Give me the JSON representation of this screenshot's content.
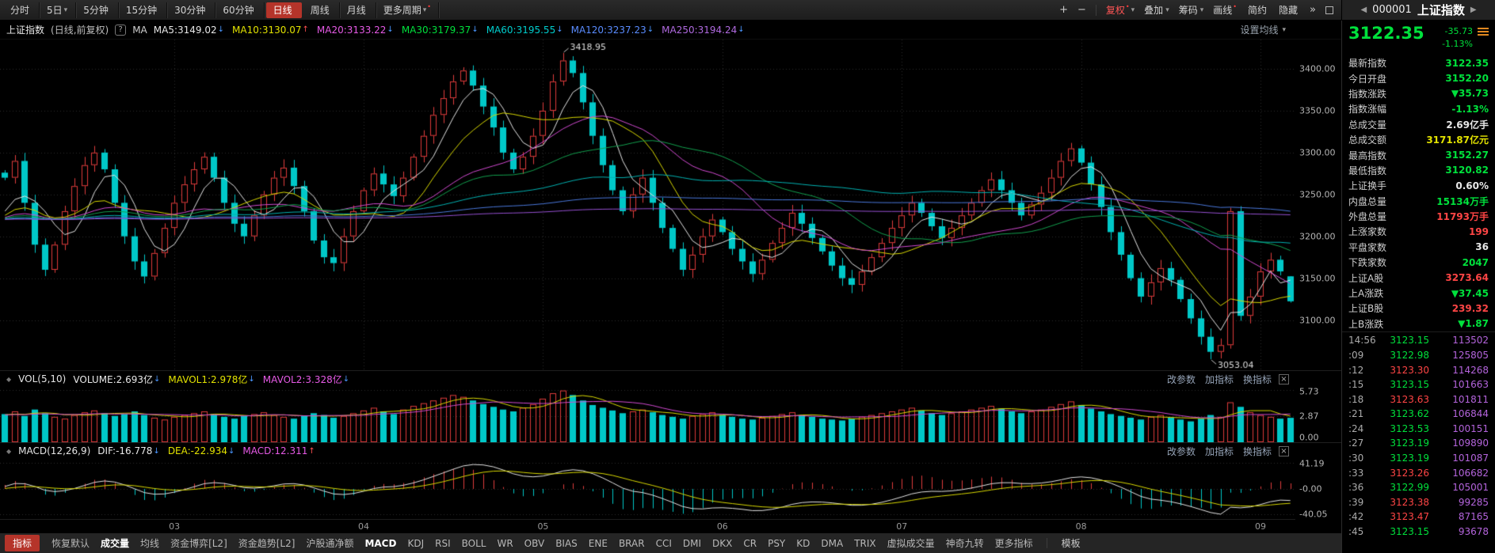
{
  "icons": {
    "plus": "+",
    "minus": "−",
    "chevrons": "»",
    "prev": "◀",
    "next": "▶",
    "caret": "▾",
    "close": "×",
    "handle": "◆",
    "help": "?"
  },
  "topbar": {
    "periods": [
      {
        "label": "分时",
        "caret": "",
        "dot": "",
        "active": false
      },
      {
        "label": "5日",
        "caret": "▾",
        "dot": "",
        "active": false
      },
      {
        "label": "5分钟",
        "caret": "",
        "dot": "",
        "active": false
      },
      {
        "label": "15分钟",
        "caret": "",
        "dot": "",
        "active": false
      },
      {
        "label": "30分钟",
        "caret": "",
        "dot": "",
        "active": false
      },
      {
        "label": "60分钟",
        "caret": "",
        "dot": "",
        "active": false
      },
      {
        "label": "日线",
        "caret": "",
        "dot": "",
        "active": true
      },
      {
        "label": "周线",
        "caret": "",
        "dot": "",
        "active": false
      },
      {
        "label": "月线",
        "caret": "",
        "dot": "",
        "active": false
      },
      {
        "label": "更多周期",
        "caret": "▾",
        "dot": "•",
        "active": false
      }
    ],
    "tools": [
      {
        "label": "复权",
        "caret": "▾",
        "dot": "•",
        "red": true
      },
      {
        "label": "叠加",
        "caret": "▾",
        "dot": "",
        "red": false
      },
      {
        "label": "筹码",
        "caret": "▾",
        "dot": "",
        "red": false
      },
      {
        "label": "画线",
        "caret": "",
        "dot": "•",
        "red": false
      },
      {
        "label": "简约",
        "caret": "",
        "dot": "",
        "red": false
      },
      {
        "label": "隐藏",
        "caret": "",
        "dot": "",
        "red": false
      }
    ]
  },
  "symbol": {
    "code": "000001",
    "name": "上证指数"
  },
  "ma_bar": {
    "title": "上证指数",
    "subtitle": "(日线,前复权)",
    "ma_label": "MA",
    "settings": "设置均线",
    "items": [
      {
        "text": "MA5:3149.02",
        "color": "white",
        "arrow": "↓",
        "dir": "down"
      },
      {
        "text": "MA10:3130.07",
        "color": "yellow",
        "arrow": "↑",
        "dir": "up"
      },
      {
        "text": "MA20:3133.22",
        "color": "magenta",
        "arrow": "↓",
        "dir": "down"
      },
      {
        "text": "MA30:3179.37",
        "color": "green",
        "arrow": "↓",
        "dir": "down"
      },
      {
        "text": "MA60:3195.55",
        "color": "cyan",
        "arrow": "↓",
        "dir": "down"
      },
      {
        "text": "MA120:3237.23",
        "color": "blue",
        "arrow": "↓",
        "dir": "down"
      },
      {
        "text": "MA250:3194.24",
        "color": "purple",
        "arrow": "↓",
        "dir": "down"
      }
    ]
  },
  "vol_panel": {
    "name": "VOL(5,10)",
    "items": [
      {
        "text": "VOLUME:2.693亿",
        "color": "white",
        "arrow": "↓",
        "dir": "down"
      },
      {
        "text": "MAVOL1:2.978亿",
        "color": "yellow",
        "arrow": "↓",
        "dir": "down"
      },
      {
        "text": "MAVOL2:3.328亿",
        "color": "magenta",
        "arrow": "↓",
        "dir": "down"
      }
    ],
    "links": [
      "改参数",
      "加指标",
      "换指标"
    ]
  },
  "macd_panel": {
    "name": "MACD(12,26,9)",
    "items": [
      {
        "text": "DIF:-16.778",
        "color": "white",
        "arrow": "↓",
        "dir": "down"
      },
      {
        "text": "DEA:-22.934",
        "color": "yellow",
        "arrow": "↓",
        "dir": "down"
      },
      {
        "text": "MACD:12.311",
        "color": "magenta",
        "arrow": "↑",
        "dir": "up"
      }
    ],
    "links": [
      "改参数",
      "加指标",
      "换指标"
    ]
  },
  "bottombar": {
    "indicator_btn": "指标",
    "template_btn": "模板",
    "items": [
      {
        "label": "恢复默认",
        "active": false
      },
      {
        "label": "成交量",
        "active": true
      },
      {
        "label": "均线",
        "active": false
      },
      {
        "label": "资金博弈[L2]",
        "active": false
      },
      {
        "label": "资金趋势[L2]",
        "active": false
      },
      {
        "label": "沪股通净额",
        "active": false
      },
      {
        "label": "MACD",
        "active": true
      },
      {
        "label": "KDJ",
        "active": false
      },
      {
        "label": "RSI",
        "active": false
      },
      {
        "label": "BOLL",
        "active": false
      },
      {
        "label": "WR",
        "active": false
      },
      {
        "label": "OBV",
        "active": false
      },
      {
        "label": "BIAS",
        "active": false
      },
      {
        "label": "ENE",
        "active": false
      },
      {
        "label": "BRAR",
        "active": false
      },
      {
        "label": "CCI",
        "active": false
      },
      {
        "label": "DMI",
        "active": false
      },
      {
        "label": "DKX",
        "active": false
      },
      {
        "label": "CR",
        "active": false
      },
      {
        "label": "PSY",
        "active": false
      },
      {
        "label": "KD",
        "active": false
      },
      {
        "label": "DMA",
        "active": false
      },
      {
        "label": "TRIX",
        "active": false
      },
      {
        "label": "虚拟成交量",
        "active": false
      },
      {
        "label": "神奇九转",
        "active": false
      },
      {
        "label": "更多指标",
        "active": false
      }
    ]
  },
  "sidebar": {
    "price": "3122.35",
    "change": "-35.73",
    "change_pct": "-1.13%",
    "rows": [
      {
        "label": "最新指数",
        "value": "3122.35",
        "color": "green"
      },
      {
        "label": "今日开盘",
        "value": "3152.20",
        "color": "green"
      },
      {
        "label": "指数涨跌",
        "value": "▼35.73",
        "color": "green"
      },
      {
        "label": "指数涨幅",
        "value": "-1.13%",
        "color": "green"
      },
      {
        "label": "总成交量",
        "value": "2.69亿手",
        "color": "white"
      },
      {
        "label": "总成交额",
        "value": "3171.87亿元",
        "color": "yellow"
      },
      {
        "label": "最高指数",
        "value": "3152.27",
        "color": "green"
      },
      {
        "label": "最低指数",
        "value": "3120.82",
        "color": "green"
      },
      {
        "label": "上证换手",
        "value": "0.60%",
        "color": "white"
      },
      {
        "label": "内盘总量",
        "value": "15134万手",
        "color": "green"
      },
      {
        "label": "外盘总量",
        "value": "11793万手",
        "color": "red"
      },
      {
        "label": "上涨家数",
        "value": "199",
        "color": "red"
      },
      {
        "label": "平盘家数",
        "value": "36",
        "color": "white"
      },
      {
        "label": "下跌家数",
        "value": "2047",
        "color": "green"
      },
      {
        "label": "上证A股",
        "value": "3273.64",
        "color": "red"
      },
      {
        "label": "上A涨跌",
        "value": "▼37.45",
        "color": "green"
      },
      {
        "label": "上证B股",
        "value": "239.32",
        "color": "red"
      },
      {
        "label": "上B涨跌",
        "value": "▼1.87",
        "color": "green"
      }
    ],
    "ticks": [
      {
        "time": "14:56",
        "price": "3123.15",
        "color": "green",
        "vol": "113502"
      },
      {
        "time": ":09",
        "price": "3122.98",
        "color": "green",
        "vol": "125805"
      },
      {
        "time": ":12",
        "price": "3123.30",
        "color": "red",
        "vol": "114268"
      },
      {
        "time": ":15",
        "price": "3123.15",
        "color": "green",
        "vol": "101663"
      },
      {
        "time": ":18",
        "price": "3123.63",
        "color": "red",
        "vol": "101811"
      },
      {
        "time": ":21",
        "price": "3123.62",
        "color": "green",
        "vol": "106844"
      },
      {
        "time": ":24",
        "price": "3123.53",
        "color": "green",
        "vol": "100151"
      },
      {
        "time": ":27",
        "price": "3123.19",
        "color": "green",
        "vol": "109890"
      },
      {
        "time": ":30",
        "price": "3123.19",
        "color": "green",
        "vol": "101087"
      },
      {
        "time": ":33",
        "price": "3123.26",
        "color": "red",
        "vol": "106682"
      },
      {
        "time": ":36",
        "price": "3122.99",
        "color": "green",
        "vol": "105001"
      },
      {
        "time": ":39",
        "price": "3123.38",
        "color": "red",
        "vol": "99285"
      },
      {
        "time": ":42",
        "price": "3123.47",
        "color": "red",
        "vol": "87165"
      },
      {
        "time": ":45",
        "price": "3123.15",
        "color": "green",
        "vol": "93678"
      }
    ]
  },
  "chart_data": {
    "type": "candlestick",
    "title": "上证指数 日K线 (前复权)",
    "main_ticks": [
      "3400.00",
      "3350.00",
      "3300.00",
      "3250.00",
      "3200.00",
      "3150.00",
      "3100.00"
    ],
    "main_ylim": [
      3040,
      3435
    ],
    "vol_ticks": [
      "5.73",
      "2.87",
      "0.00"
    ],
    "vol_ylim": 6.1,
    "macd_ticks": [
      "41.19",
      "-0.00",
      "-40.05"
    ],
    "macd_ylim": 48,
    "months": [
      "03",
      "04",
      "05",
      "06",
      "07",
      "08",
      "09"
    ],
    "month_days": [
      17,
      36,
      54,
      72,
      90,
      108,
      126
    ],
    "high_point": 3418.95,
    "low_point": 3053.04,
    "annotations": {
      "high": "3418.95",
      "low": "3053.04"
    },
    "last": {
      "open": 3152.2,
      "high": 3152.27,
      "low": 3120.82,
      "close": 3122.35
    },
    "pad_value": 3220,
    "closes": [
      3270,
      3290,
      3240,
      3190,
      3160,
      3190,
      3230,
      3260,
      3285,
      3300,
      3280,
      3240,
      3200,
      3170,
      3152,
      3180,
      3210,
      3240,
      3262,
      3280,
      3295,
      3270,
      3240,
      3215,
      3200,
      3225,
      3250,
      3270,
      3282,
      3260,
      3230,
      3195,
      3175,
      3168,
      3200,
      3230,
      3255,
      3275,
      3262,
      3248,
      3270,
      3295,
      3320,
      3345,
      3365,
      3385,
      3398,
      3380,
      3355,
      3330,
      3300,
      3280,
      3295,
      3320,
      3350,
      3385,
      3410,
      3395,
      3360,
      3320,
      3285,
      3255,
      3230,
      3250,
      3270,
      3240,
      3210,
      3185,
      3160,
      3178,
      3200,
      3220,
      3205,
      3185,
      3170,
      3155,
      3172,
      3192,
      3210,
      3228,
      3215,
      3198,
      3182,
      3165,
      3150,
      3142,
      3158,
      3175,
      3192,
      3210,
      3225,
      3240,
      3228,
      3212,
      3198,
      3210,
      3225,
      3240,
      3255,
      3268,
      3255,
      3240,
      3225,
      3238,
      3252,
      3270,
      3290,
      3305,
      3288,
      3262,
      3235,
      3205,
      3178,
      3150,
      3128,
      3145,
      3162,
      3148,
      3125,
      3102,
      3080,
      3062,
      3070,
      3230,
      3105,
      3128,
      3158,
      3172,
      3158.08,
      3122.35
    ],
    "volumes": [
      3.1,
      3.4,
      2.9,
      3.6,
      3.2,
      2.8,
      2.6,
      3.0,
      3.3,
      3.5,
      3.2,
      2.9,
      3.1,
      3.4,
      3.0,
      2.7,
      2.5,
      2.8,
      3.0,
      3.2,
      3.4,
      3.1,
      2.8,
      2.6,
      2.9,
      3.1,
      3.3,
      3.0,
      2.8,
      2.6,
      2.9,
      3.2,
      3.0,
      2.7,
      2.9,
      3.2,
      3.5,
      3.8,
      3.4,
      3.1,
      3.6,
      4.0,
      4.3,
      4.6,
      4.9,
      5.2,
      5.0,
      4.6,
      4.2,
      3.9,
      3.6,
      3.4,
      3.8,
      4.2,
      4.8,
      5.4,
      5.7,
      5.2,
      4.6,
      4.1,
      3.8,
      3.5,
      3.2,
      3.4,
      3.6,
      3.3,
      3.0,
      2.8,
      2.6,
      2.9,
      3.1,
      3.3,
      3.0,
      2.8,
      2.6,
      2.5,
      2.7,
      2.9,
      3.1,
      3.3,
      3.0,
      2.8,
      2.6,
      2.5,
      2.4,
      2.6,
      2.8,
      3.0,
      3.2,
      3.4,
      3.6,
      3.8,
      3.5,
      3.2,
      3.0,
      3.2,
      3.4,
      3.6,
      3.8,
      4.0,
      3.7,
      3.4,
      3.2,
      3.4,
      3.6,
      3.9,
      4.2,
      4.5,
      4.1,
      3.7,
      3.4,
      3.1,
      2.9,
      2.7,
      2.5,
      2.8,
      3.0,
      2.7,
      2.5,
      2.3,
      2.6,
      3.0,
      2.8,
      4.4,
      3.9,
      3.3,
      3.0,
      2.8,
      2.6,
      2.693
    ]
  }
}
